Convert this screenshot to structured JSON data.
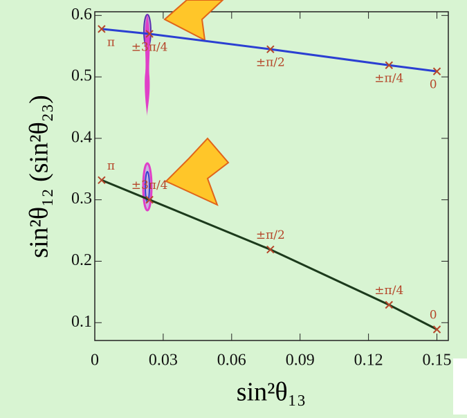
{
  "chart_data": {
    "type": "line",
    "x_label": "sin²θ₁₃",
    "y_label": "sin²θ₁₂ (sin²θ₂₃)",
    "xlim": [
      0,
      0.155
    ],
    "ylim": [
      0.071,
      0.606
    ],
    "xticks": [
      0,
      0.03,
      0.06,
      0.09,
      0.12,
      0.15
    ],
    "yticks": [
      0.1,
      0.2,
      0.3,
      0.4,
      0.5,
      0.6
    ],
    "series": [
      {
        "color": "#2b3fd2",
        "x": [
          0.003,
          0.024,
          0.077,
          0.129,
          0.15
        ],
        "values": [
          0.578,
          0.57,
          0.545,
          0.519,
          0.509
        ],
        "point_labels": [
          "π",
          "±3π/4",
          "±π/2",
          "±π/4",
          "0"
        ]
      },
      {
        "color": "#1c3a1c",
        "x": [
          0.003,
          0.024,
          0.077,
          0.129,
          0.15
        ],
        "values": [
          0.332,
          0.3,
          0.219,
          0.129,
          0.089
        ],
        "point_labels": [
          "π",
          "±3π/4",
          "±π/2",
          "±π/4",
          "0"
        ]
      }
    ],
    "marker_color": "#b5462a"
  }
}
